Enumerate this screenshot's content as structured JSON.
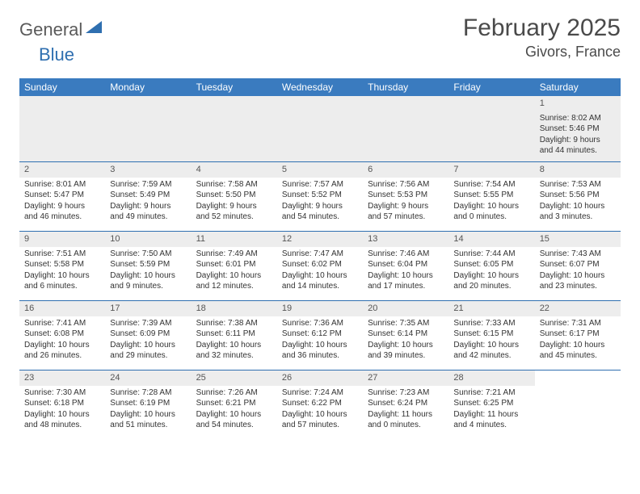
{
  "brand": {
    "part1": "General",
    "part2": "Blue"
  },
  "title": "February 2025",
  "location": "Givors, France",
  "colors": {
    "header_bg": "#3a7bbf",
    "border": "#2f6fb0",
    "daynum_bg": "#ededed",
    "text": "#333333",
    "brand_gray": "#5a5a5a",
    "brand_blue": "#2f6fb0"
  },
  "weekdays": [
    "Sunday",
    "Monday",
    "Tuesday",
    "Wednesday",
    "Thursday",
    "Friday",
    "Saturday"
  ],
  "weeks": [
    [
      null,
      null,
      null,
      null,
      null,
      null,
      {
        "n": "1",
        "sunrise": "Sunrise: 8:02 AM",
        "sunset": "Sunset: 5:46 PM",
        "daylight": "Daylight: 9 hours and 44 minutes."
      }
    ],
    [
      {
        "n": "2",
        "sunrise": "Sunrise: 8:01 AM",
        "sunset": "Sunset: 5:47 PM",
        "daylight": "Daylight: 9 hours and 46 minutes."
      },
      {
        "n": "3",
        "sunrise": "Sunrise: 7:59 AM",
        "sunset": "Sunset: 5:49 PM",
        "daylight": "Daylight: 9 hours and 49 minutes."
      },
      {
        "n": "4",
        "sunrise": "Sunrise: 7:58 AM",
        "sunset": "Sunset: 5:50 PM",
        "daylight": "Daylight: 9 hours and 52 minutes."
      },
      {
        "n": "5",
        "sunrise": "Sunrise: 7:57 AM",
        "sunset": "Sunset: 5:52 PM",
        "daylight": "Daylight: 9 hours and 54 minutes."
      },
      {
        "n": "6",
        "sunrise": "Sunrise: 7:56 AM",
        "sunset": "Sunset: 5:53 PM",
        "daylight": "Daylight: 9 hours and 57 minutes."
      },
      {
        "n": "7",
        "sunrise": "Sunrise: 7:54 AM",
        "sunset": "Sunset: 5:55 PM",
        "daylight": "Daylight: 10 hours and 0 minutes."
      },
      {
        "n": "8",
        "sunrise": "Sunrise: 7:53 AM",
        "sunset": "Sunset: 5:56 PM",
        "daylight": "Daylight: 10 hours and 3 minutes."
      }
    ],
    [
      {
        "n": "9",
        "sunrise": "Sunrise: 7:51 AM",
        "sunset": "Sunset: 5:58 PM",
        "daylight": "Daylight: 10 hours and 6 minutes."
      },
      {
        "n": "10",
        "sunrise": "Sunrise: 7:50 AM",
        "sunset": "Sunset: 5:59 PM",
        "daylight": "Daylight: 10 hours and 9 minutes."
      },
      {
        "n": "11",
        "sunrise": "Sunrise: 7:49 AM",
        "sunset": "Sunset: 6:01 PM",
        "daylight": "Daylight: 10 hours and 12 minutes."
      },
      {
        "n": "12",
        "sunrise": "Sunrise: 7:47 AM",
        "sunset": "Sunset: 6:02 PM",
        "daylight": "Daylight: 10 hours and 14 minutes."
      },
      {
        "n": "13",
        "sunrise": "Sunrise: 7:46 AM",
        "sunset": "Sunset: 6:04 PM",
        "daylight": "Daylight: 10 hours and 17 minutes."
      },
      {
        "n": "14",
        "sunrise": "Sunrise: 7:44 AM",
        "sunset": "Sunset: 6:05 PM",
        "daylight": "Daylight: 10 hours and 20 minutes."
      },
      {
        "n": "15",
        "sunrise": "Sunrise: 7:43 AM",
        "sunset": "Sunset: 6:07 PM",
        "daylight": "Daylight: 10 hours and 23 minutes."
      }
    ],
    [
      {
        "n": "16",
        "sunrise": "Sunrise: 7:41 AM",
        "sunset": "Sunset: 6:08 PM",
        "daylight": "Daylight: 10 hours and 26 minutes."
      },
      {
        "n": "17",
        "sunrise": "Sunrise: 7:39 AM",
        "sunset": "Sunset: 6:09 PM",
        "daylight": "Daylight: 10 hours and 29 minutes."
      },
      {
        "n": "18",
        "sunrise": "Sunrise: 7:38 AM",
        "sunset": "Sunset: 6:11 PM",
        "daylight": "Daylight: 10 hours and 32 minutes."
      },
      {
        "n": "19",
        "sunrise": "Sunrise: 7:36 AM",
        "sunset": "Sunset: 6:12 PM",
        "daylight": "Daylight: 10 hours and 36 minutes."
      },
      {
        "n": "20",
        "sunrise": "Sunrise: 7:35 AM",
        "sunset": "Sunset: 6:14 PM",
        "daylight": "Daylight: 10 hours and 39 minutes."
      },
      {
        "n": "21",
        "sunrise": "Sunrise: 7:33 AM",
        "sunset": "Sunset: 6:15 PM",
        "daylight": "Daylight: 10 hours and 42 minutes."
      },
      {
        "n": "22",
        "sunrise": "Sunrise: 7:31 AM",
        "sunset": "Sunset: 6:17 PM",
        "daylight": "Daylight: 10 hours and 45 minutes."
      }
    ],
    [
      {
        "n": "23",
        "sunrise": "Sunrise: 7:30 AM",
        "sunset": "Sunset: 6:18 PM",
        "daylight": "Daylight: 10 hours and 48 minutes."
      },
      {
        "n": "24",
        "sunrise": "Sunrise: 7:28 AM",
        "sunset": "Sunset: 6:19 PM",
        "daylight": "Daylight: 10 hours and 51 minutes."
      },
      {
        "n": "25",
        "sunrise": "Sunrise: 7:26 AM",
        "sunset": "Sunset: 6:21 PM",
        "daylight": "Daylight: 10 hours and 54 minutes."
      },
      {
        "n": "26",
        "sunrise": "Sunrise: 7:24 AM",
        "sunset": "Sunset: 6:22 PM",
        "daylight": "Daylight: 10 hours and 57 minutes."
      },
      {
        "n": "27",
        "sunrise": "Sunrise: 7:23 AM",
        "sunset": "Sunset: 6:24 PM",
        "daylight": "Daylight: 11 hours and 0 minutes."
      },
      {
        "n": "28",
        "sunrise": "Sunrise: 7:21 AM",
        "sunset": "Sunset: 6:25 PM",
        "daylight": "Daylight: 11 hours and 4 minutes."
      },
      null
    ]
  ]
}
